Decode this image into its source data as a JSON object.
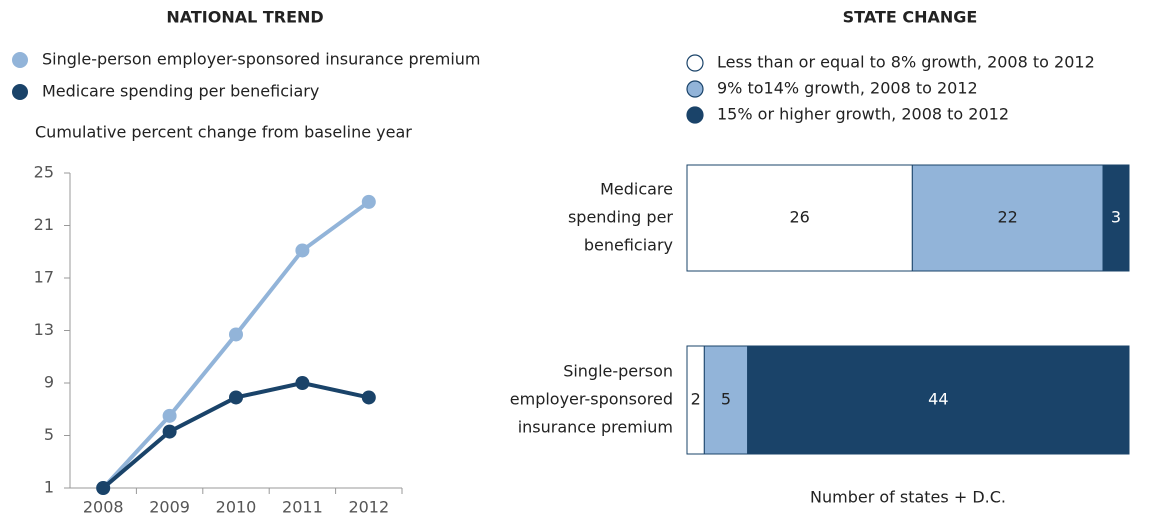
{
  "chart_data": [
    {
      "type": "line",
      "title": "NATIONAL TREND",
      "y_label": "Cumulative percent change from baseline year",
      "categories": [
        "2008",
        "2009",
        "2010",
        "2011",
        "2012"
      ],
      "series": [
        {
          "name": "Single-person employer-sponsored insurance premium",
          "color": "#92b4d9",
          "values": [
            1,
            6.5,
            12.7,
            19.1,
            22.8
          ]
        },
        {
          "name": "Medicare spending per beneficiary",
          "color": "#1a4369",
          "values": [
            1,
            5.3,
            7.9,
            9.0,
            7.9
          ]
        }
      ],
      "ylim": [
        1,
        25
      ],
      "yticks": [
        1,
        5,
        9,
        13,
        17,
        21,
        25
      ]
    },
    {
      "type": "stacked-bar",
      "orientation": "horizontal",
      "title": "STATE CHANGE",
      "x_label": "Number of states + D.C.",
      "categories": [
        [
          "Medicare",
          "spending per",
          "beneficiary"
        ],
        [
          "Single-person",
          "employer-sponsored",
          "insurance premium"
        ]
      ],
      "series": [
        {
          "name": "Less than or equal to 8% growth, 2008 to 2012",
          "color": "#ffffff",
          "values": [
            26,
            2
          ]
        },
        {
          "name": "9% to14% growth, 2008 to 2012",
          "color": "#92b4d9",
          "values": [
            22,
            5
          ]
        },
        {
          "name": "15% or higher growth, 2008 to 2012",
          "color": "#1a4369",
          "values": [
            3,
            44
          ]
        }
      ],
      "xlim": [
        0,
        51
      ]
    }
  ]
}
